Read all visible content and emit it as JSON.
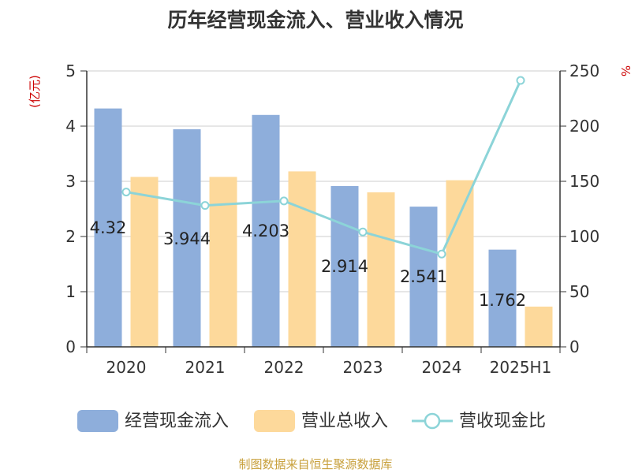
{
  "chart_data": {
    "type": "bar",
    "title": "历年经营现金流入、营业收入情况",
    "categories": [
      "2020",
      "2021",
      "2022",
      "2023",
      "2024",
      "2025H1"
    ],
    "y_left": {
      "label": "(亿元)",
      "ylim": [
        0,
        5
      ],
      "ticks": [
        "0",
        "1",
        "2",
        "3",
        "4",
        "5"
      ]
    },
    "y_right": {
      "label": "%",
      "ylim": [
        0,
        250
      ],
      "ticks": [
        "0",
        "50",
        "100",
        "150",
        "200",
        "250"
      ]
    },
    "grid": true,
    "legend_position": "bottom",
    "series": [
      {
        "name": "经营现金流入",
        "type": "bar",
        "axis": "left",
        "values": [
          4.32,
          3.944,
          4.203,
          2.914,
          2.541,
          1.762
        ],
        "labels": [
          "4.32",
          "3.944",
          "4.203",
          "2.914",
          "2.541",
          "1.762"
        ]
      },
      {
        "name": "营业总收入",
        "type": "bar",
        "axis": "left",
        "values": [
          3.08,
          3.08,
          3.18,
          2.8,
          3.02,
          0.73
        ]
      },
      {
        "name": "营收现金比",
        "type": "line",
        "axis": "right",
        "values": [
          140.3,
          128.1,
          132.2,
          104.1,
          84.1,
          241.4
        ]
      }
    ]
  },
  "colors": {
    "cash_inflow": "#8eaedb",
    "revenue": "#fdd99b",
    "ratio_line": "#8cd4d8",
    "title": "#333333",
    "axis_label_red": "#cc0000",
    "footer": "#c8a03c"
  },
  "footer": {
    "source": "制图数据来自恒生聚源数据库"
  }
}
